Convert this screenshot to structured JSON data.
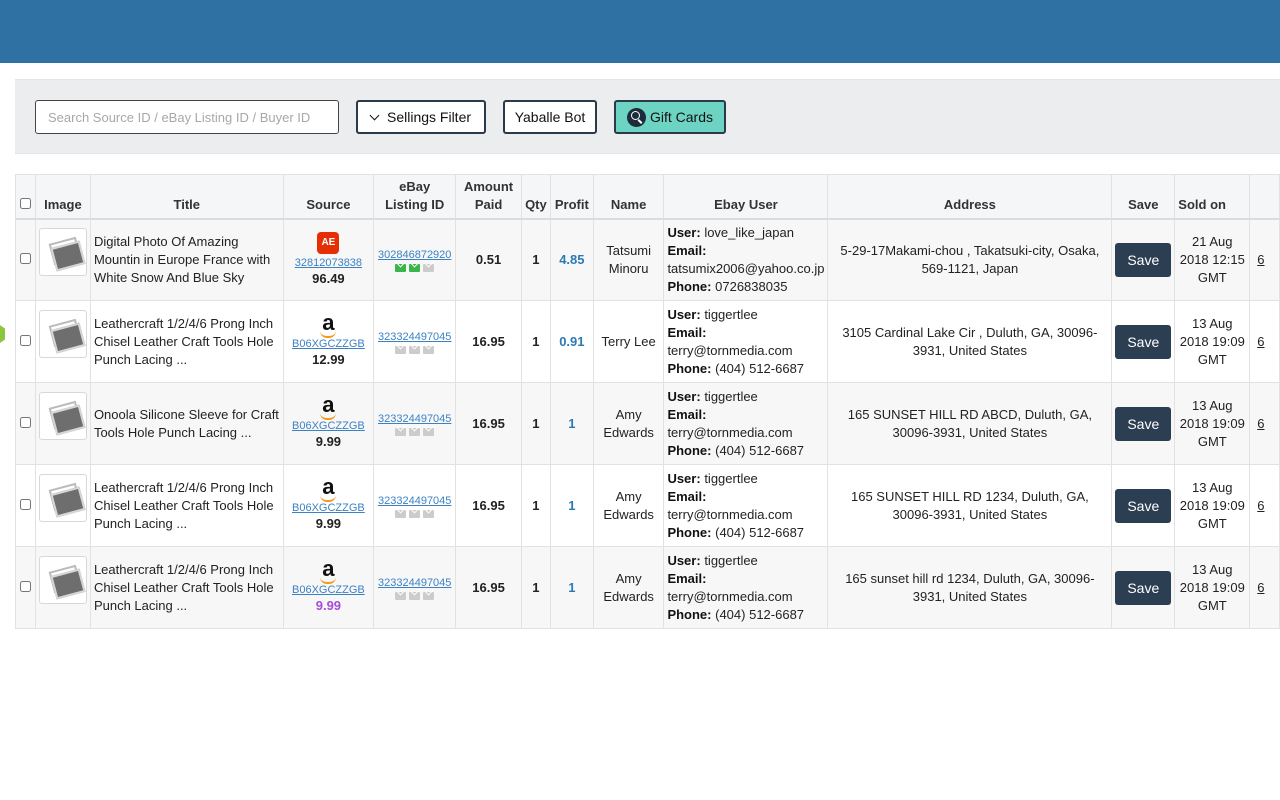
{
  "search": {
    "placeholder": "Search Source ID / eBay Listing ID / Buyer ID"
  },
  "toolbar": {
    "filter_label": "Sellings Filter",
    "bot_label": "Yaballe Bot",
    "gift_label": "Gift Cards"
  },
  "table": {
    "headers": {
      "image": "Image",
      "title": "Title",
      "source": "Source",
      "ebay_line1": "eBay",
      "ebay_line2": "Listing ID",
      "amount_line1": "Amount",
      "amount_line2": "Paid",
      "qty": "Qty",
      "profit": "Profit",
      "name": "Name",
      "ebay_user": "Ebay User",
      "address": "Address",
      "save": "Save",
      "sold_on": "Sold on"
    },
    "labels": {
      "user": "User:",
      "email": "Email:",
      "phone": "Phone:",
      "save": "Save"
    },
    "rows": [
      {
        "title": "Digital Photo Of Amazing Mountin in Europe France with White Snow And Blue Sky",
        "source_icon": "aliexpress-icon",
        "source_logo": "AE",
        "source_id": "32812073838",
        "source_price": "96.49",
        "price_color": "#222222",
        "ebay_id": "302846872920",
        "env": [
          "green",
          "green",
          "gray"
        ],
        "amount": "0.51",
        "qty": "1",
        "profit": "4.85",
        "name": "Tatsumi Minoru",
        "user": "love_like_japan",
        "email": "tatsumix2006@yahoo.co.jp",
        "phone": "0726838035",
        "address": "5-29-17Makami-chou , Takatsuki-city, Osaka, 569-1121, Japan",
        "sold_on": "21 Aug 2018 12:15 GMT",
        "extra": "6"
      },
      {
        "title": "Leathercraft 1/2/4/6 Prong Inch Chisel Leather Craft Tools Hole Punch Lacing ...",
        "source_icon": "amazon-icon",
        "source_logo": "a",
        "source_id": "B06XGCZZGB",
        "source_price": "12.99",
        "price_color": "#222222",
        "ebay_id": "323324497045",
        "env": [
          "gray",
          "gray",
          "gray"
        ],
        "amount": "16.95",
        "qty": "1",
        "profit": "0.91",
        "name": "Terry Lee",
        "user": "tiggertlee",
        "email": "terry@tornmedia.com",
        "phone": "(404) 512-6687",
        "address": "3105 Cardinal Lake Cir , Duluth, GA, 30096-3931, United States",
        "sold_on": "13 Aug 2018 19:09 GMT",
        "extra": "6"
      },
      {
        "title": "Onoola Silicone Sleeve for Craft Tools Hole Punch Lacing ...",
        "source_icon": "amazon-icon",
        "source_logo": "a",
        "source_id": "B06XGCZZGB",
        "source_price": "9.99",
        "price_color": "#222222",
        "ebay_id": "323324497045",
        "env": [
          "gray",
          "gray",
          "gray"
        ],
        "amount": "16.95",
        "qty": "1",
        "profit": "1",
        "name": "Amy Edwards",
        "user": "tiggertlee",
        "email": "terry@tornmedia.com",
        "phone": "(404) 512-6687",
        "address": "165 SUNSET HILL RD ABCD, Duluth, GA, 30096-3931, United States",
        "sold_on": "13 Aug 2018 19:09 GMT",
        "extra": "6"
      },
      {
        "title": "Leathercraft 1/2/4/6 Prong Inch Chisel Leather Craft Tools Hole Punch Lacing ...",
        "source_icon": "amazon-icon",
        "source_logo": "a",
        "source_id": "B06XGCZZGB",
        "source_price": "9.99",
        "price_color": "#222222",
        "ebay_id": "323324497045",
        "env": [
          "gray",
          "gray",
          "gray"
        ],
        "amount": "16.95",
        "qty": "1",
        "profit": "1",
        "name": "Amy Edwards",
        "user": "tiggertlee",
        "email": "terry@tornmedia.com",
        "phone": "(404) 512-6687",
        "address": "165 SUNSET HILL RD 1234, Duluth, GA, 30096-3931, United States",
        "sold_on": "13 Aug 2018 19:09 GMT",
        "extra": "6"
      },
      {
        "title": "Leathercraft 1/2/4/6 Prong Inch Chisel Leather Craft Tools Hole Punch Lacing ...",
        "source_icon": "amazon-icon",
        "source_logo": "a",
        "source_id": "B06XGCZZGB",
        "source_price": "9.99",
        "price_color": "#a64dd8",
        "ebay_id": "323324497045",
        "env": [
          "gray",
          "gray",
          "gray"
        ],
        "amount": "16.95",
        "qty": "1",
        "profit": "1",
        "name": "Amy Edwards",
        "user": "tiggertlee",
        "email": "terry@tornmedia.com",
        "phone": "(404) 512-6687",
        "address": "165 sunset hill rd 1234, Duluth, GA, 30096-3931, United States",
        "sold_on": "13 Aug 2018 19:09 GMT",
        "extra": "6"
      }
    ]
  },
  "colors": {
    "header_bar": "#3071a4",
    "gift_button": "#6dd4c4",
    "save_button": "#2b3e52",
    "profit": "#2a7ab5",
    "link": "#3b82c4"
  }
}
